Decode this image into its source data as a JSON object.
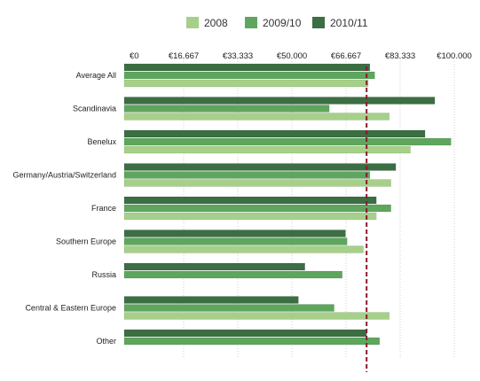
{
  "chart_data": {
    "type": "bar",
    "orientation": "horizontal",
    "title": "",
    "xlabel": "",
    "ylabel": "",
    "xlim": [
      0,
      100000
    ],
    "x_ticks": [
      "€0",
      "€16.667",
      "€33.333",
      "€50.000",
      "€66.667",
      "€83.333",
      "€100.000"
    ],
    "grid": "vertical dotted",
    "legend_position": "top",
    "reference_line": {
      "value": 73000,
      "style": "dashed",
      "color": "#8b1a2b"
    },
    "categories": [
      "Average All",
      "Scandinavia",
      "Benelux",
      "Germany/Austria/Switzerland",
      "France",
      "Southern Europe",
      "Russia",
      "Central & Eastern Europe",
      "Other"
    ],
    "series": [
      {
        "name": "2010/11",
        "color": "#3c6e43",
        "values": [
          74000,
          94000,
          91000,
          82000,
          76000,
          66500,
          54000,
          52000,
          73000
        ]
      },
      {
        "name": "2009/10",
        "color": "#5ea65e",
        "values": [
          75500,
          61500,
          99000,
          74000,
          80500,
          67000,
          65500,
          63000,
          77000
        ]
      },
      {
        "name": "2008",
        "color": "#a6d08a",
        "values": [
          73500,
          80000,
          86500,
          80500,
          76000,
          72000,
          null,
          80000,
          null
        ]
      }
    ],
    "legend": [
      {
        "name": "2008",
        "color": "#a6d08a"
      },
      {
        "name": "2009/10",
        "color": "#5ea65e"
      },
      {
        "name": "2010/11",
        "color": "#3c6e43"
      }
    ]
  }
}
